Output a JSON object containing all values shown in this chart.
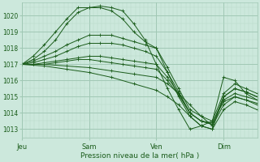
{
  "bg_color": "#cce8dc",
  "grid_color_minor": "#b8d8c8",
  "grid_color_major": "#a0c8b4",
  "line_color": "#1a5c1a",
  "ylim": [
    1012.5,
    1020.8
  ],
  "xlim": [
    0,
    168
  ],
  "ylabel_ticks": [
    1013,
    1014,
    1015,
    1016,
    1017,
    1018,
    1019,
    1020
  ],
  "xlabel": "Pression niveau de la mer( hPa )",
  "xtick_labels": [
    "Jeu",
    "Sam",
    "Ven",
    "Dim"
  ],
  "xtick_positions": [
    0,
    48,
    96,
    144
  ],
  "series": [
    {
      "x": [
        0,
        8,
        16,
        24,
        32,
        40,
        48,
        56,
        64,
        72,
        80,
        88,
        96,
        104,
        112,
        120,
        128,
        136,
        144,
        152,
        160,
        168
      ],
      "y": [
        1017.0,
        1017.5,
        1018.2,
        1019.0,
        1019.8,
        1020.5,
        1020.5,
        1020.6,
        1020.5,
        1020.3,
        1019.5,
        1018.5,
        1017.0,
        1015.5,
        1014.2,
        1013.0,
        1013.2,
        1013.5,
        1016.2,
        1016.0,
        1015.2,
        1014.8
      ]
    },
    {
      "x": [
        0,
        8,
        16,
        24,
        32,
        40,
        48,
        56,
        64,
        72,
        80,
        88,
        96,
        104,
        112,
        120,
        128,
        136,
        144,
        152,
        160,
        168
      ],
      "y": [
        1017.0,
        1017.3,
        1017.8,
        1018.5,
        1019.5,
        1020.2,
        1020.5,
        1020.5,
        1020.3,
        1019.8,
        1019.0,
        1018.4,
        1018.0,
        1016.5,
        1015.0,
        1013.8,
        1013.2,
        1013.0,
        1015.0,
        1015.5,
        1015.3,
        1015.0
      ]
    },
    {
      "x": [
        0,
        8,
        16,
        24,
        32,
        40,
        48,
        56,
        64,
        72,
        80,
        88,
        96,
        104,
        112,
        120,
        128,
        136,
        144,
        152,
        160,
        168
      ],
      "y": [
        1017.0,
        1017.2,
        1017.5,
        1017.8,
        1018.2,
        1018.5,
        1018.8,
        1018.8,
        1018.8,
        1018.6,
        1018.4,
        1018.2,
        1018.0,
        1016.8,
        1015.5,
        1014.2,
        1013.8,
        1013.5,
        1015.2,
        1015.8,
        1015.5,
        1015.2
      ]
    },
    {
      "x": [
        0,
        8,
        16,
        24,
        32,
        40,
        48,
        56,
        64,
        72,
        80,
        88,
        96,
        104,
        112,
        120,
        128,
        136,
        144,
        152,
        160,
        168
      ],
      "y": [
        1017.0,
        1017.1,
        1017.3,
        1017.5,
        1017.8,
        1018.1,
        1018.3,
        1018.3,
        1018.3,
        1018.2,
        1018.0,
        1017.8,
        1017.5,
        1016.5,
        1015.3,
        1014.0,
        1013.5,
        1013.3,
        1015.0,
        1015.5,
        1015.3,
        1015.0
      ]
    },
    {
      "x": [
        0,
        8,
        16,
        24,
        32,
        40,
        48,
        56,
        64,
        72,
        80,
        88,
        96,
        104,
        112,
        120,
        128,
        136,
        144,
        152,
        160,
        168
      ],
      "y": [
        1017.0,
        1017.0,
        1017.1,
        1017.2,
        1017.3,
        1017.4,
        1017.5,
        1017.5,
        1017.4,
        1017.3,
        1017.2,
        1017.1,
        1017.0,
        1016.2,
        1015.2,
        1014.0,
        1013.5,
        1013.3,
        1014.8,
        1015.2,
        1015.0,
        1014.8
      ]
    },
    {
      "x": [
        0,
        8,
        16,
        24,
        32,
        40,
        48,
        56,
        64,
        72,
        80,
        88,
        96,
        104,
        112,
        120,
        128,
        136,
        144,
        152,
        160,
        168
      ],
      "y": [
        1017.0,
        1017.0,
        1017.0,
        1017.1,
        1017.2,
        1017.3,
        1017.3,
        1017.2,
        1017.1,
        1017.0,
        1016.9,
        1016.8,
        1016.7,
        1016.0,
        1015.1,
        1014.0,
        1013.5,
        1013.4,
        1014.7,
        1015.0,
        1014.8,
        1014.6
      ]
    },
    {
      "x": [
        0,
        16,
        32,
        48,
        64,
        80,
        96,
        104,
        112,
        120,
        128,
        136,
        144,
        152,
        160,
        168
      ],
      "y": [
        1017.0,
        1017.0,
        1016.9,
        1016.8,
        1016.6,
        1016.4,
        1016.2,
        1015.8,
        1015.2,
        1014.5,
        1013.8,
        1013.2,
        1014.5,
        1015.0,
        1014.8,
        1014.5
      ]
    },
    {
      "x": [
        0,
        16,
        32,
        48,
        64,
        80,
        96,
        104,
        112,
        120,
        128,
        136,
        144,
        152,
        160,
        168
      ],
      "y": [
        1017.0,
        1016.9,
        1016.7,
        1016.5,
        1016.2,
        1015.8,
        1015.4,
        1015.0,
        1014.5,
        1013.8,
        1013.2,
        1013.0,
        1014.2,
        1014.7,
        1014.5,
        1014.2
      ]
    }
  ]
}
